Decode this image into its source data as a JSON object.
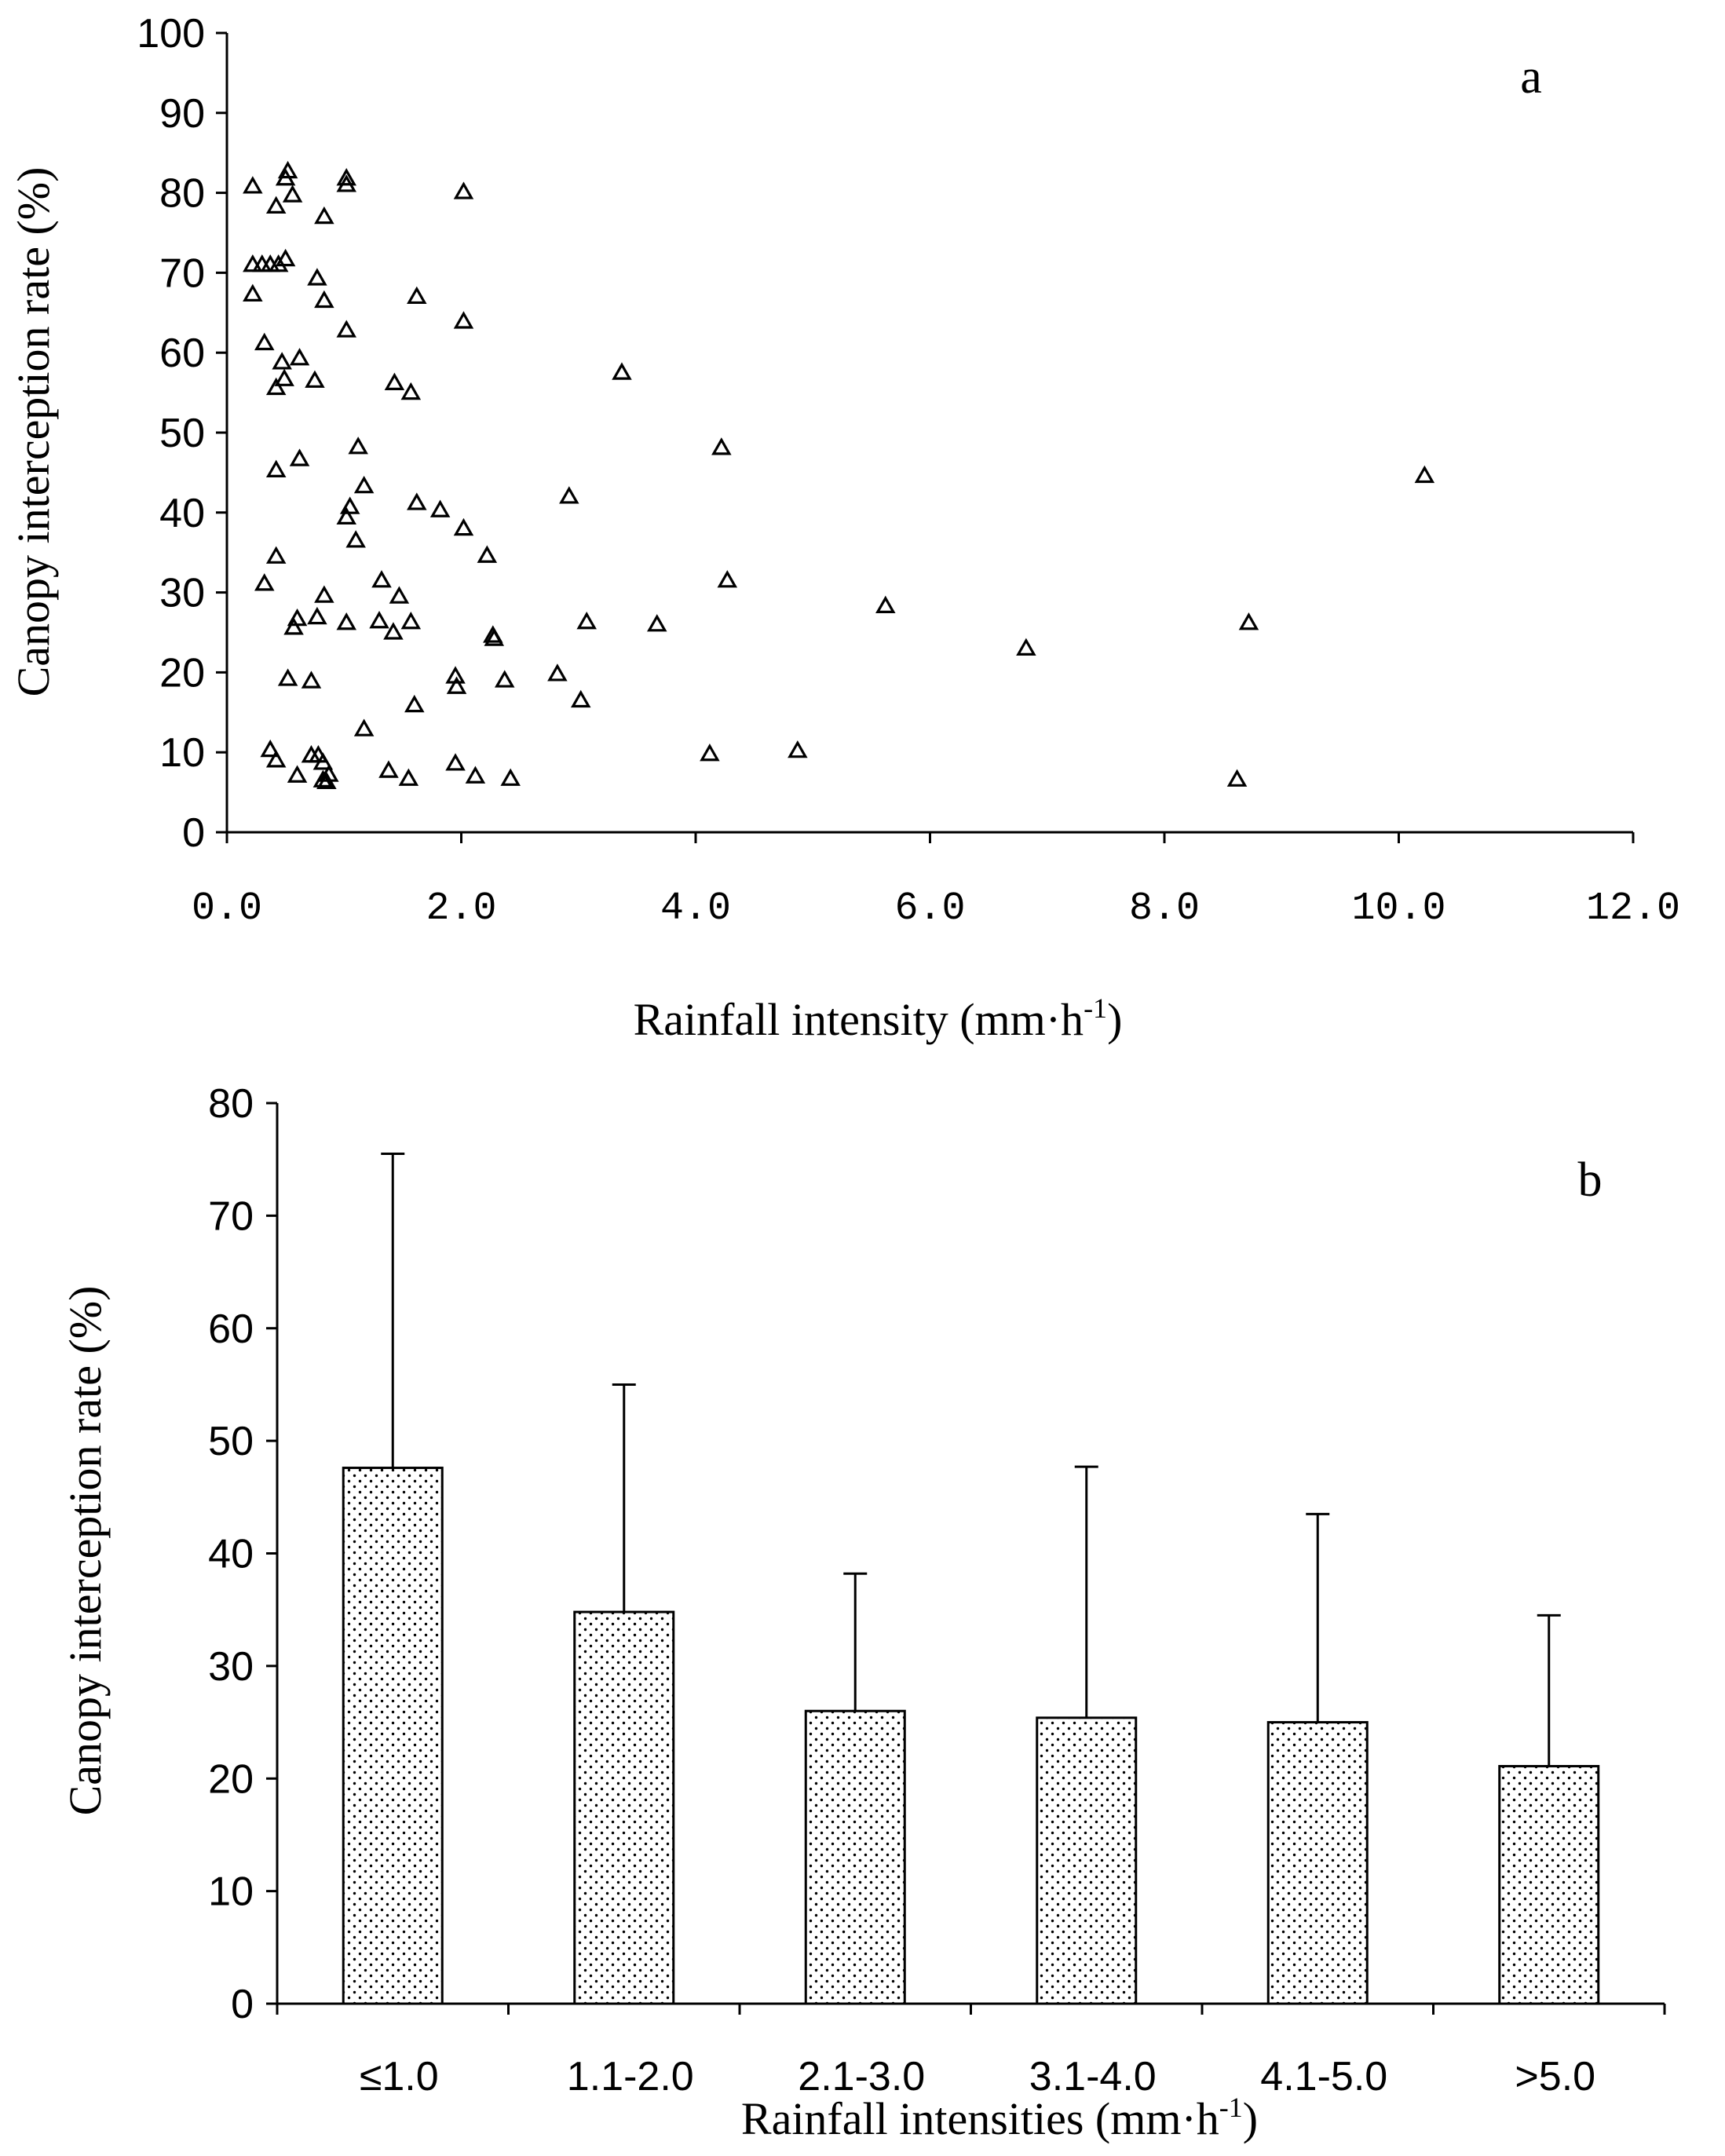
{
  "chart_data": [
    {
      "panel": "a",
      "type": "scatter",
      "marker": "triangle",
      "title": "",
      "panel_label": "a",
      "xlabel": "Rainfall intensity (mm·h",
      "xlabel_sup": "-1",
      "xlabel_close": ")",
      "ylabel": "Canopy interception rate (%)",
      "xlim": [
        0,
        12
      ],
      "ylim": [
        0,
        100
      ],
      "x_ticks": [
        0,
        2,
        4,
        6,
        8,
        10,
        12
      ],
      "x_tick_labels": [
        "0.0",
        "2.0",
        "4.0",
        "6.0",
        "8.0",
        "10.0",
        "12.0"
      ],
      "y_ticks": [
        0,
        10,
        20,
        30,
        40,
        50,
        60,
        70,
        80,
        90,
        100
      ],
      "y_tick_labels": [
        "0",
        "10",
        "20",
        "30",
        "40",
        "50",
        "60",
        "70",
        "80",
        "90",
        "100"
      ],
      "grid": false,
      "points": [
        [
          0.22,
          80.8
        ],
        [
          0.52,
          82.7
        ],
        [
          0.5,
          81.8
        ],
        [
          0.42,
          78.3
        ],
        [
          0.56,
          79.7
        ],
        [
          0.83,
          77.0
        ],
        [
          1.02,
          81.8
        ],
        [
          1.02,
          81.0
        ],
        [
          2.02,
          80.1
        ],
        [
          0.22,
          71.0
        ],
        [
          0.3,
          71.0
        ],
        [
          0.37,
          71.0
        ],
        [
          0.44,
          71.0
        ],
        [
          0.5,
          71.7
        ],
        [
          0.77,
          69.3
        ],
        [
          0.22,
          67.3
        ],
        [
          0.83,
          66.5
        ],
        [
          1.62,
          67.0
        ],
        [
          1.02,
          62.8
        ],
        [
          2.02,
          63.9
        ],
        [
          0.32,
          61.2
        ],
        [
          0.47,
          58.8
        ],
        [
          0.62,
          59.3
        ],
        [
          0.49,
          56.7
        ],
        [
          0.42,
          55.6
        ],
        [
          0.75,
          56.5
        ],
        [
          1.43,
          56.2
        ],
        [
          1.57,
          55.0
        ],
        [
          3.37,
          57.5
        ],
        [
          1.12,
          48.2
        ],
        [
          4.22,
          48.1
        ],
        [
          0.42,
          45.3
        ],
        [
          0.62,
          46.7
        ],
        [
          1.17,
          43.3
        ],
        [
          10.22,
          44.6
        ],
        [
          1.62,
          41.2
        ],
        [
          2.92,
          42.0
        ],
        [
          1.05,
          40.7
        ],
        [
          1.02,
          39.4
        ],
        [
          1.82,
          40.3
        ],
        [
          2.02,
          38.0
        ],
        [
          1.1,
          36.5
        ],
        [
          2.22,
          34.6
        ],
        [
          0.42,
          34.5
        ],
        [
          0.32,
          31.1
        ],
        [
          1.32,
          31.5
        ],
        [
          4.27,
          31.5
        ],
        [
          0.83,
          29.6
        ],
        [
          1.47,
          29.5
        ],
        [
          5.62,
          28.3
        ],
        [
          0.6,
          26.7
        ],
        [
          0.57,
          25.6
        ],
        [
          0.77,
          26.9
        ],
        [
          1.02,
          26.2
        ],
        [
          1.3,
          26.4
        ],
        [
          1.42,
          25.0
        ],
        [
          1.57,
          26.3
        ],
        [
          2.27,
          24.6
        ],
        [
          2.28,
          24.2
        ],
        [
          3.07,
          26.3
        ],
        [
          3.67,
          26.0
        ],
        [
          6.82,
          23.0
        ],
        [
          8.72,
          26.2
        ],
        [
          0.52,
          19.2
        ],
        [
          0.72,
          18.9
        ],
        [
          1.95,
          19.5
        ],
        [
          1.96,
          18.2
        ],
        [
          2.37,
          19.0
        ],
        [
          2.82,
          19.8
        ],
        [
          3.02,
          16.5
        ],
        [
          1.6,
          15.9
        ],
        [
          1.17,
          12.9
        ],
        [
          0.37,
          10.3
        ],
        [
          0.42,
          9.0
        ],
        [
          0.72,
          9.6
        ],
        [
          0.78,
          9.6
        ],
        [
          0.82,
          8.7
        ],
        [
          1.38,
          7.7
        ],
        [
          1.95,
          8.6
        ],
        [
          4.12,
          9.8
        ],
        [
          4.87,
          10.2
        ],
        [
          0.6,
          7.1
        ],
        [
          0.82,
          6.5
        ],
        [
          0.85,
          6.3
        ],
        [
          0.87,
          7.2
        ],
        [
          1.55,
          6.7
        ],
        [
          2.12,
          7.0
        ],
        [
          2.42,
          6.7
        ],
        [
          8.62,
          6.6
        ]
      ]
    },
    {
      "panel": "b",
      "type": "bar",
      "title": "",
      "panel_label": "b",
      "xlabel": "Rainfall intensities (mm·h",
      "xlabel_sup": "-1",
      "xlabel_close": ")",
      "ylabel": "Canopy interception rate (%)",
      "ylim": [
        0,
        80
      ],
      "y_ticks": [
        0,
        10,
        20,
        30,
        40,
        50,
        60,
        70,
        80
      ],
      "y_tick_labels": [
        "0",
        "10",
        "20",
        "30",
        "40",
        "50",
        "60",
        "70",
        "80"
      ],
      "grid": false,
      "categories": [
        "≤1.0",
        "1.1-2.0",
        "2.1-3.0",
        "3.1-4.0",
        "4.1-5.0",
        ">5.0"
      ],
      "values": [
        47.6,
        34.8,
        26.0,
        25.4,
        25.0,
        21.1
      ],
      "error_upper": [
        75.5,
        55.0,
        38.2,
        47.7,
        43.5,
        34.5
      ],
      "bar_pattern": "dotted"
    }
  ]
}
